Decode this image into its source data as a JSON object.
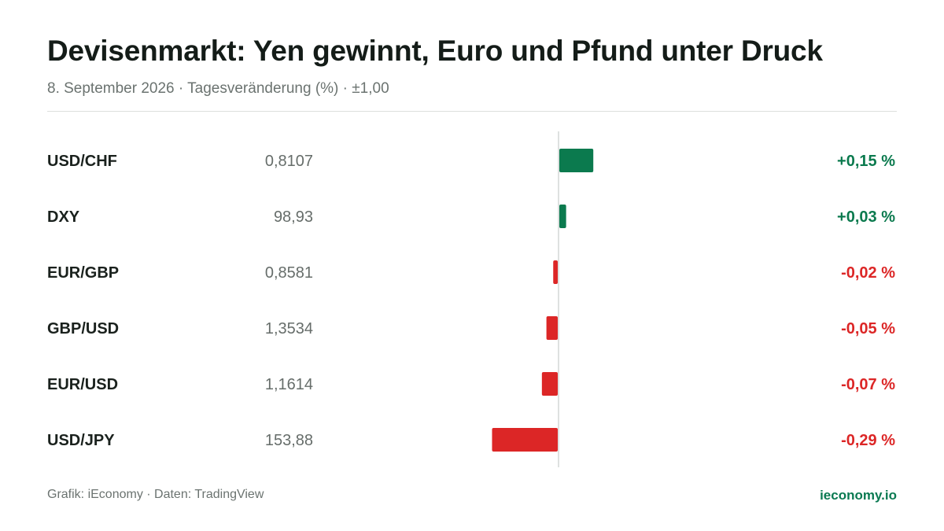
{
  "header": {
    "title": "Devisenmarkt: Yen gewinnt, Euro und Pfund unter Druck",
    "subtitle": "8. September 2026 · Tagesveränderung (%) · ±1,00"
  },
  "footer": {
    "source": "Grafik: iEconomy · Daten: TradingView",
    "brand": "ieconomy.io"
  },
  "colors": {
    "positive": "#0b7a4e",
    "negative": "#dc2626",
    "axis": "#d4d7d5",
    "label": "#1a211d",
    "price": "#666d6a"
  },
  "chart_data": {
    "type": "bar",
    "orientation": "horizontal",
    "categories": [
      "USD/CHF",
      "DXY",
      "EUR/GBP",
      "GBP/USD",
      "EUR/USD",
      "USD/JPY"
    ],
    "prices": [
      "0,8107",
      "98,93",
      "0,8581",
      "1,3534",
      "1,1614",
      "153,88"
    ],
    "values": [
      0.15,
      0.03,
      -0.02,
      -0.05,
      -0.07,
      -0.29
    ],
    "value_labels": [
      "+0,15 %",
      "+0,03 %",
      "-0,02 %",
      "-0,05 %",
      "-0,07 %",
      "-0,29 %"
    ],
    "xlim": [
      -1.0,
      1.0
    ],
    "unit": "%",
    "grid": false,
    "legend": "none"
  }
}
